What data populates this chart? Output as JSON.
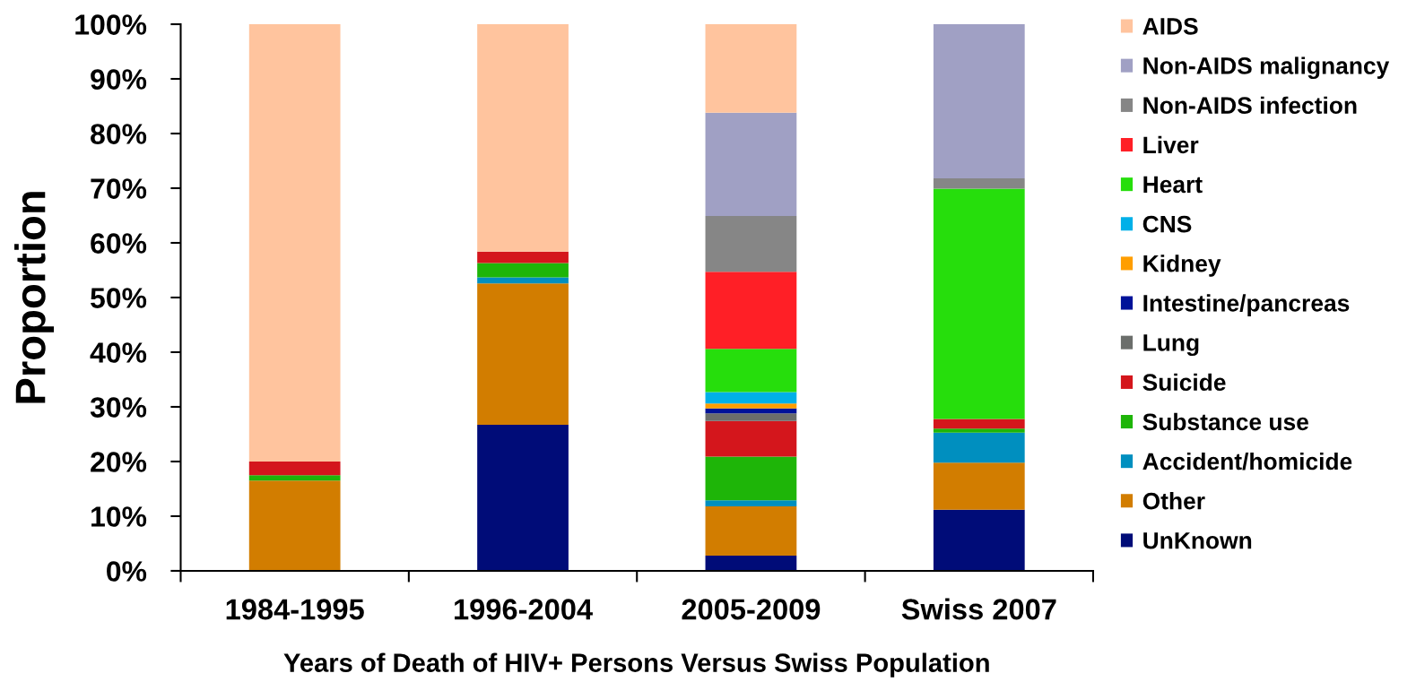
{
  "chart_data": {
    "type": "bar",
    "stacked": true,
    "xlabel": "Years of Death of HIV+ Persons Versus Swiss Population",
    "ylabel": "Proportion",
    "categories": [
      "1984-1995",
      "1996-2004",
      "2005-2009",
      "Swiss 2007"
    ],
    "ylim": [
      0,
      100
    ],
    "yticks": [
      {
        "value": 0,
        "label": "0%"
      },
      {
        "value": 10,
        "label": "10%"
      },
      {
        "value": 20,
        "label": "20%"
      },
      {
        "value": 30,
        "label": "30%"
      },
      {
        "value": 40,
        "label": "40%"
      },
      {
        "value": 50,
        "label": "50%"
      },
      {
        "value": 60,
        "label": "60%"
      },
      {
        "value": 70,
        "label": "70%"
      },
      {
        "value": 80,
        "label": "80%"
      },
      {
        "value": 90,
        "label": "90%"
      },
      {
        "value": 100,
        "label": "100%"
      }
    ],
    "legend": "right",
    "series": [
      {
        "name": "UnKnown",
        "color": "#000c78",
        "values": [
          null,
          26.7,
          2.8,
          11.2
        ]
      },
      {
        "name": "Other",
        "color": "#d27d00",
        "values": [
          16.5,
          25.9,
          9.0,
          8.6
        ]
      },
      {
        "name": "Accident/homicide",
        "color": "#008fbf",
        "values": [
          null,
          1.1,
          1.1,
          5.5
        ]
      },
      {
        "name": "Substance use",
        "color": "#1eb508",
        "values": [
          1.0,
          2.6,
          8.0,
          0.7
        ]
      },
      {
        "name": "Suicide",
        "color": "#d4161c",
        "values": [
          2.5,
          2.1,
          6.5,
          1.8
        ]
      },
      {
        "name": "Lung",
        "color": "#6b6e6b",
        "values": [
          null,
          null,
          1.4,
          null
        ]
      },
      {
        "name": "Intestine/pancreas",
        "color": "#001299",
        "values": [
          null,
          null,
          0.9,
          null
        ]
      },
      {
        "name": "Kidney",
        "color": "#ff9e00",
        "values": [
          null,
          null,
          0.9,
          null
        ]
      },
      {
        "name": "CNS",
        "color": "#00b0e8",
        "values": [
          null,
          null,
          2.1,
          null
        ]
      },
      {
        "name": "Heart",
        "color": "#26de0c",
        "values": [
          null,
          null,
          7.9,
          42.1
        ]
      },
      {
        "name": "Liver",
        "color": "#ff1f26",
        "values": [
          null,
          null,
          14.1,
          null
        ]
      },
      {
        "name": "Non-AIDS infection",
        "color": "#868686",
        "values": [
          null,
          null,
          10.2,
          1.9
        ]
      },
      {
        "name": "Non-AIDS malignancy",
        "color": "#a0a0c4",
        "values": [
          null,
          null,
          18.9,
          28.2
        ]
      },
      {
        "name": "AIDS",
        "color": "#ffc49e",
        "values": [
          80.0,
          41.6,
          16.2,
          null
        ]
      }
    ]
  }
}
